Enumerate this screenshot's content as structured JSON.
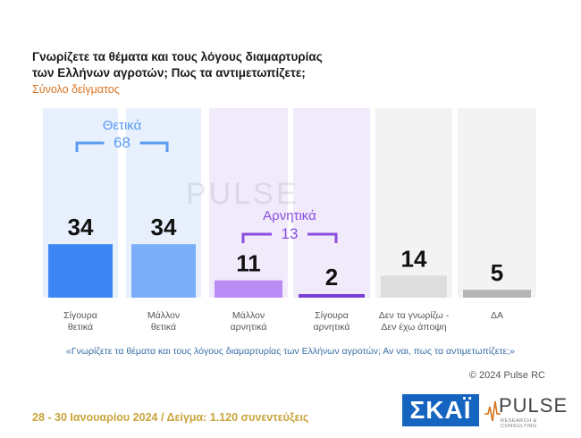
{
  "title_line1": "Γνωρίζετε τα θέματα και τους λόγους διαμαρτυρίας",
  "title_line2": "των Ελλήνων αγροτών; Πως τα αντιμετωπίζετε;",
  "subtitle": "Σύνολο δείγματος",
  "question": "«Γνωρίζετε τα θέματα και τους λόγους διαμαρτυρίας των Ελλήνων αγροτών; Αν ναι, πως τα αντιμετωπίζετε;»",
  "copyright": "© 2024 Pulse RC",
  "footer": "28 - 30 Ιανουαρίου 2024 / Δείγμα: 1.120 συνεντεύξεις",
  "logos": {
    "skai": "ΣΚΑΪ",
    "pulse": "PULSE",
    "pulse_sub": "RESEARCH & CONSULTING",
    "watermark": "PULSE"
  },
  "colors": {
    "positive": "#3d87f5",
    "negative": "#b98bf5",
    "neutral": "#dddddd",
    "na": "#b5b5b5",
    "orange": "#d9731f"
  },
  "chart_data": {
    "type": "bar",
    "categories": [
      [
        "Σίγουρα",
        "θετικά"
      ],
      [
        "Μάλλον",
        "θετικά"
      ],
      [
        "Μάλλον",
        "αρνητικά"
      ],
      [
        "Σίγουρα",
        "αρνητικά"
      ],
      [
        "Δεν τα γνωρίζω -",
        "Δεν έχω άποψη"
      ],
      [
        "ΔΑ"
      ]
    ],
    "values": [
      34,
      34,
      11,
      2,
      14,
      5
    ],
    "groups": [
      {
        "label": "Θετικά",
        "value": 68,
        "from": 0,
        "to": 1
      },
      {
        "label": "Αρνητικά",
        "value": 13,
        "from": 2,
        "to": 3
      }
    ]
  }
}
